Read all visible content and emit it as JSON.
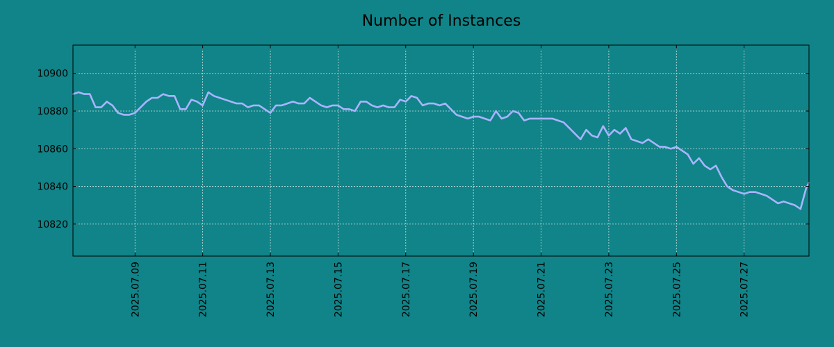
{
  "colors": {
    "background": "#108488",
    "line": "#aab4ff",
    "axis": "#000000",
    "grid": "#cfe3e3"
  },
  "chart_data": {
    "type": "line",
    "title": "Number of Instances",
    "xlabel": "",
    "ylabel": "",
    "x_unit": "date",
    "xlim": [
      "2025-07-07 04:00",
      "2025-07-28 22:00"
    ],
    "ylim": [
      10803,
      10915
    ],
    "grid": true,
    "legend": "none",
    "x_ticks": [
      "2025-07-09",
      "2025-07-11",
      "2025-07-13",
      "2025-07-15",
      "2025-07-17",
      "2025-07-19",
      "2025-07-21",
      "2025-07-23",
      "2025-07-25",
      "2025-07-27"
    ],
    "x_tick_labels": [
      "2025.07.09",
      "2025.07.11",
      "2025.07.13",
      "2025.07.15",
      "2025.07.17",
      "2025.07.19",
      "2025.07.21",
      "2025.07.23",
      "2025.07.25",
      "2025.07.27"
    ],
    "y_ticks": [
      10820,
      10840,
      10860,
      10880,
      10900
    ],
    "y_tick_labels": [
      "10820",
      "10840",
      "10860",
      "10880",
      "10900"
    ],
    "series": [
      {
        "x": [
          "2025-07-07 04:00",
          "2025-07-07 08:00",
          "2025-07-07 12:00",
          "2025-07-07 16:00",
          "2025-07-07 20:00",
          "2025-07-08 00:00",
          "2025-07-08 04:00",
          "2025-07-08 08:00",
          "2025-07-08 12:00",
          "2025-07-08 16:00",
          "2025-07-08 20:00",
          "2025-07-09 00:00",
          "2025-07-09 04:00",
          "2025-07-09 08:00",
          "2025-07-09 12:00",
          "2025-07-09 16:00",
          "2025-07-09 20:00",
          "2025-07-10 00:00",
          "2025-07-10 04:00",
          "2025-07-10 08:00",
          "2025-07-10 12:00",
          "2025-07-10 16:00",
          "2025-07-10 20:00",
          "2025-07-11 00:00",
          "2025-07-11 04:00",
          "2025-07-11 08:00",
          "2025-07-11 12:00",
          "2025-07-11 16:00",
          "2025-07-11 20:00",
          "2025-07-12 00:00",
          "2025-07-12 04:00",
          "2025-07-12 08:00",
          "2025-07-12 12:00",
          "2025-07-12 16:00",
          "2025-07-12 20:00",
          "2025-07-13 00:00",
          "2025-07-13 04:00",
          "2025-07-13 08:00",
          "2025-07-13 12:00",
          "2025-07-13 16:00",
          "2025-07-13 20:00",
          "2025-07-14 00:00",
          "2025-07-14 04:00",
          "2025-07-14 08:00",
          "2025-07-14 12:00",
          "2025-07-14 16:00",
          "2025-07-14 20:00",
          "2025-07-15 00:00",
          "2025-07-15 04:00",
          "2025-07-15 08:00",
          "2025-07-15 12:00",
          "2025-07-15 16:00",
          "2025-07-15 20:00",
          "2025-07-16 00:00",
          "2025-07-16 04:00",
          "2025-07-16 08:00",
          "2025-07-16 12:00",
          "2025-07-16 16:00",
          "2025-07-16 20:00",
          "2025-07-17 00:00",
          "2025-07-17 04:00",
          "2025-07-17 08:00",
          "2025-07-17 12:00",
          "2025-07-17 16:00",
          "2025-07-17 20:00",
          "2025-07-18 00:00",
          "2025-07-18 04:00",
          "2025-07-18 08:00",
          "2025-07-18 12:00",
          "2025-07-18 16:00",
          "2025-07-18 20:00",
          "2025-07-19 00:00",
          "2025-07-19 04:00",
          "2025-07-19 08:00",
          "2025-07-19 12:00",
          "2025-07-19 16:00",
          "2025-07-19 20:00",
          "2025-07-20 00:00",
          "2025-07-20 04:00",
          "2025-07-20 08:00",
          "2025-07-20 12:00",
          "2025-07-20 16:00",
          "2025-07-20 20:00",
          "2025-07-21 00:00",
          "2025-07-21 04:00",
          "2025-07-21 08:00",
          "2025-07-21 12:00",
          "2025-07-21 16:00",
          "2025-07-21 20:00",
          "2025-07-22 00:00",
          "2025-07-22 04:00",
          "2025-07-22 08:00",
          "2025-07-22 12:00",
          "2025-07-22 16:00",
          "2025-07-22 20:00",
          "2025-07-23 00:00",
          "2025-07-23 04:00",
          "2025-07-23 08:00",
          "2025-07-23 12:00",
          "2025-07-23 16:00",
          "2025-07-23 20:00",
          "2025-07-24 00:00",
          "2025-07-24 04:00",
          "2025-07-24 08:00",
          "2025-07-24 12:00",
          "2025-07-24 16:00",
          "2025-07-24 20:00",
          "2025-07-25 00:00",
          "2025-07-25 04:00",
          "2025-07-25 08:00",
          "2025-07-25 12:00",
          "2025-07-25 16:00",
          "2025-07-25 20:00",
          "2025-07-26 00:00",
          "2025-07-26 04:00",
          "2025-07-26 08:00",
          "2025-07-26 12:00",
          "2025-07-26 16:00",
          "2025-07-26 20:00",
          "2025-07-27 00:00",
          "2025-07-27 04:00",
          "2025-07-27 08:00",
          "2025-07-27 12:00",
          "2025-07-27 16:00",
          "2025-07-27 20:00",
          "2025-07-28 00:00",
          "2025-07-28 04:00",
          "2025-07-28 08:00",
          "2025-07-28 12:00",
          "2025-07-28 16:00",
          "2025-07-28 20:00",
          "2025-07-28 22:00"
        ],
        "y": [
          10889,
          10890,
          10889,
          10889,
          10882,
          10882,
          10885,
          10883,
          10879,
          10878,
          10878,
          10879,
          10882,
          10885,
          10887,
          10887,
          10889,
          10888,
          10888,
          10881,
          10881,
          10886,
          10885,
          10883,
          10890,
          10888,
          10887,
          10886,
          10885,
          10884,
          10884,
          10882,
          10883,
          10883,
          10881,
          10879,
          10883,
          10883,
          10884,
          10885,
          10884,
          10884,
          10887,
          10885,
          10883,
          10882,
          10883,
          10883,
          10881,
          10881,
          10880,
          10885,
          10885,
          10883,
          10882,
          10883,
          10882,
          10882,
          10886,
          10885,
          10888,
          10887,
          10883,
          10884,
          10884,
          10883,
          10884,
          10881,
          10878,
          10877,
          10876,
          10877,
          10877,
          10876,
          10875,
          10880,
          10876,
          10877,
          10880,
          10879,
          10875,
          10876,
          10876,
          10876,
          10876,
          10876,
          10875,
          10874,
          10871,
          10868,
          10865,
          10870,
          10867,
          10866,
          10872,
          10867,
          10870,
          10868,
          10871,
          10865,
          10864,
          10863,
          10865,
          10863,
          10861,
          10861,
          10860,
          10861,
          10859,
          10857,
          10852,
          10855,
          10851,
          10849,
          10851,
          10845,
          10840,
          10838,
          10837,
          10836,
          10837,
          10837,
          10836,
          10835,
          10833,
          10831,
          10832,
          10831,
          10830,
          10828,
          10839,
          10842
        ]
      }
    ]
  }
}
